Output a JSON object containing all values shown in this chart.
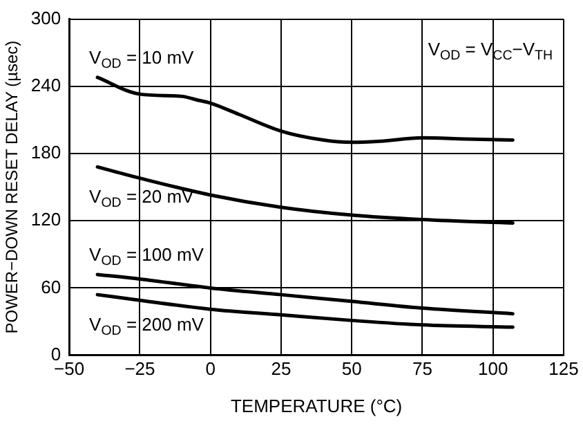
{
  "chart_data": {
    "type": "line",
    "xlabel": "TEMPERATURE (°C)",
    "ylabel": "POWER−DOWN RESET DELAY (µsec)",
    "xlim": [
      -50,
      125
    ],
    "xticks": [
      -50,
      -25,
      0,
      25,
      50,
      75,
      100,
      125
    ],
    "ylim": [
      0,
      300
    ],
    "yticks": [
      0,
      60,
      120,
      180,
      240,
      300
    ],
    "grid": true,
    "legend": false,
    "marker": "none",
    "line_style": "solid",
    "annotations": [
      "V$_{OD}$ = V$_{CC}$−V$_{TH}$"
    ],
    "series": [
      {
        "name": "V$_{OD}$ = 10 mV",
        "color": "#000000",
        "x": [
          -40,
          -25,
          -10,
          -5,
          0,
          10,
          25,
          40,
          50,
          60,
          75,
          90,
          107
        ],
        "values": [
          248,
          233,
          231,
          228,
          225,
          215,
          200,
          192,
          190,
          191,
          194,
          193,
          192
        ]
      },
      {
        "name": "V$_{OD}$ = 20 mV",
        "color": "#000000",
        "x": [
          -40,
          -25,
          0,
          25,
          50,
          75,
          107
        ],
        "values": [
          168,
          158,
          143,
          132,
          125,
          121,
          118
        ]
      },
      {
        "name": "V$_{OD}$ = 100 mV",
        "color": "#000000",
        "x": [
          -40,
          -25,
          0,
          25,
          50,
          75,
          107
        ],
        "values": [
          72,
          68,
          60,
          54,
          48,
          42,
          37
        ]
      },
      {
        "name": "V$_{OD}$ = 200 mV",
        "color": "#000000",
        "x": [
          -40,
          -25,
          0,
          25,
          50,
          75,
          107
        ],
        "values": [
          54,
          49,
          41,
          36,
          31,
          27,
          25
        ]
      }
    ]
  }
}
